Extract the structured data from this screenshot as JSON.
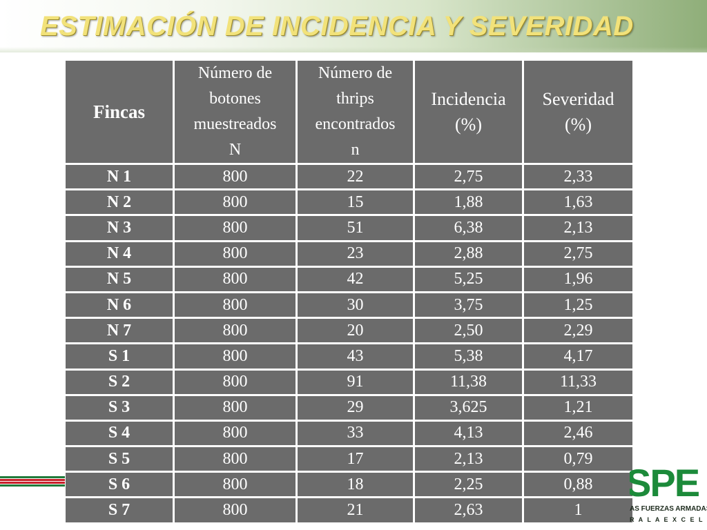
{
  "slide": {
    "title": "ESTIMACIÓN DE INCIDENCIA Y SEVERIDAD"
  },
  "table": {
    "headers": [
      {
        "lines": [
          "Fincas"
        ]
      },
      {
        "lines": [
          "Número de",
          "botones",
          "muestreados",
          "N"
        ]
      },
      {
        "lines": [
          "Número de",
          "thrips",
          "encontrados",
          "n"
        ]
      },
      {
        "lines": [
          "Incidencia",
          "(%)"
        ]
      },
      {
        "lines": [
          "Severidad",
          "(%)"
        ]
      }
    ],
    "rows": [
      {
        "finca": "N 1",
        "botones": "800",
        "thrips": "22",
        "incidencia": "2,75",
        "severidad": "2,33"
      },
      {
        "finca": "N 2",
        "botones": "800",
        "thrips": "15",
        "incidencia": "1,88",
        "severidad": "1,63"
      },
      {
        "finca": "N 3",
        "botones": "800",
        "thrips": "51",
        "incidencia": "6,38",
        "severidad": "2,13"
      },
      {
        "finca": "N 4",
        "botones": "800",
        "thrips": "23",
        "incidencia": "2,88",
        "severidad": "2,75"
      },
      {
        "finca": "N 5",
        "botones": "800",
        "thrips": "42",
        "incidencia": "5,25",
        "severidad": "1,96"
      },
      {
        "finca": "N 6",
        "botones": "800",
        "thrips": "30",
        "incidencia": "3,75",
        "severidad": "1,25"
      },
      {
        "finca": "N 7",
        "botones": "800",
        "thrips": "20",
        "incidencia": "2,50",
        "severidad": "2,29"
      },
      {
        "finca": "S 1",
        "botones": "800",
        "thrips": "43",
        "incidencia": "5,38",
        "severidad": "4,17"
      },
      {
        "finca": "S 2",
        "botones": "800",
        "thrips": "91",
        "incidencia": "11,38",
        "severidad": "11,33"
      },
      {
        "finca": "S 3",
        "botones": "800",
        "thrips": "29",
        "incidencia": "3,625",
        "severidad": "1,21"
      },
      {
        "finca": "S 4",
        "botones": "800",
        "thrips": "33",
        "incidencia": "4,13",
        "severidad": "2,46"
      },
      {
        "finca": "S 5",
        "botones": "800",
        "thrips": "17",
        "incidencia": "2,13",
        "severidad": "0,79"
      },
      {
        "finca": "S 6",
        "botones": "800",
        "thrips": "18",
        "incidencia": "2,25",
        "severidad": "0,88"
      },
      {
        "finca": "S 7",
        "botones": "800",
        "thrips": "21",
        "incidencia": "2,63",
        "severidad": "1"
      }
    ]
  },
  "logo": {
    "letters": "SPE",
    "line1": "AS FUERZAS ARMADAS",
    "line2": "R A   L A   E X C E L E N C I A"
  },
  "colors": {
    "table_cell_bg": "#6b6b6b",
    "title_text": "#f2e27a",
    "logo_green": "#1c8a3a",
    "stripe_green": "#1f7a3a",
    "stripe_red": "#c8202a"
  }
}
